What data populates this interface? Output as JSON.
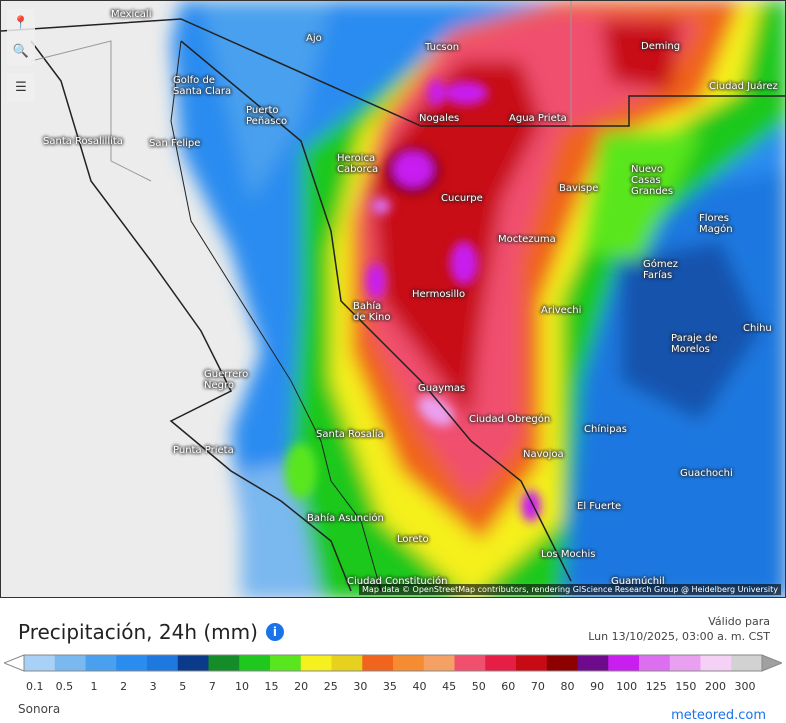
{
  "map": {
    "attribution": "Map data © OpenStreetMap contributors, rendering GIScience Research Group @ Heidelberg University",
    "controls": [
      {
        "icon": "location-pin-icon"
      },
      {
        "icon": "zoom-icon"
      },
      {
        "icon": "layers-icon"
      }
    ],
    "cities": [
      "Mexicali",
      "Ajo",
      "Tucson",
      "Deming",
      "Golfo de Santa Clara",
      "Puerto Peñasco",
      "Ciudad Juárez",
      "Nogales",
      "Agua Prieta",
      "Heroica Caborca",
      "Cucurpe",
      "Bavispe",
      "Nuevo Casas Grandes",
      "Flores Magón",
      "Moctezuma",
      "Gómez Farías",
      "Hermosillo",
      "Bahía de Kino",
      "Arivechi",
      "Chihu",
      "Paraje de Morelos",
      "Guerrero Negro",
      "Guaymas",
      "Ciudad Obregón",
      "Chínipas",
      "Santa Rosalía",
      "Navojoa",
      "Guachochi",
      "El Fuerte",
      "Loreto",
      "Los Mochis",
      "Guamúchil",
      "Santa Rosalillita",
      "San Felipe",
      "Punta Prieta",
      "Bahía Asunción",
      "Ciudad Constitución"
    ]
  },
  "legend": {
    "title": "Precipitación, 24h (mm)",
    "info_icon": "info-icon",
    "valid_label": "Válido para",
    "valid_time": "Lun 13/10/2025, 03:00 a. m. CST",
    "ticks": [
      "0.1",
      "0.5",
      "1",
      "2",
      "3",
      "5",
      "7",
      "10",
      "15",
      "20",
      "25",
      "30",
      "35",
      "40",
      "45",
      "50",
      "60",
      "70",
      "80",
      "90",
      "100",
      "125",
      "150",
      "200",
      "300"
    ],
    "colors": [
      "#a9d0f5",
      "#7ab8f0",
      "#4aa0ee",
      "#2b8cf0",
      "#1f78e0",
      "#0a3a8a",
      "#148c28",
      "#1ec81e",
      "#5ae61e",
      "#f5f01e",
      "#e6d21e",
      "#f0641e",
      "#f58c32",
      "#f5a064",
      "#f0506e",
      "#e61e46",
      "#c80a14",
      "#8c0000",
      "#6e0a8c",
      "#c81ef0",
      "#dc6ef0",
      "#eaa0f0",
      "#f5d2f5",
      "#d2d2d2",
      "#a0a0a0"
    ],
    "region": "Sonora",
    "brand": "meteored.com"
  }
}
